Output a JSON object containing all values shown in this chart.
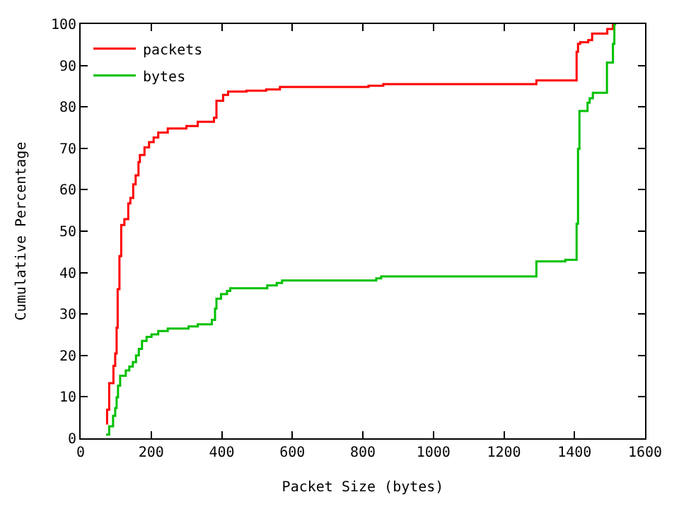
{
  "chart_data": {
    "type": "step",
    "xlabel": "Packet Size (bytes)",
    "ylabel": "Cumulative Percentage",
    "xlim": [
      0,
      1600
    ],
    "ylim": [
      0,
      100
    ],
    "xticks": [
      0,
      200,
      400,
      600,
      800,
      1000,
      1200,
      1400,
      1600
    ],
    "yticks": [
      0,
      10,
      20,
      30,
      40,
      50,
      60,
      70,
      80,
      90,
      100
    ],
    "legend": "top left",
    "marker": "none",
    "line_style": "solid",
    "series": [
      {
        "name": "packets",
        "color": "#ff0000",
        "x": [
          72,
          75,
          81,
          93,
          98,
          102,
          105,
          110,
          115,
          124,
          135,
          141,
          149,
          156,
          164,
          168,
          181,
          194,
          207,
          220,
          247,
          300,
          332,
          378,
          385,
          404,
          418,
          470,
          526,
          565,
          816,
          858,
          1292,
          1406,
          1410,
          1416,
          1439,
          1450,
          1493,
          1509,
          1512,
          1518
        ],
        "values": [
          3.6,
          6.9,
          13.3,
          17.5,
          20.5,
          26.7,
          36,
          44,
          51.5,
          52.9,
          56.7,
          58,
          61.3,
          63.5,
          66.7,
          68.4,
          70.2,
          71.5,
          72.6,
          73.8,
          74.8,
          75.4,
          76.4,
          77.4,
          81.5,
          82.9,
          83.7,
          83.9,
          84.2,
          84.8,
          85.1,
          85.5,
          86.4,
          93.3,
          95.2,
          95.6,
          96.1,
          97.7,
          98.8,
          100,
          100,
          100
        ]
      },
      {
        "name": "bytes",
        "color": "#00c000",
        "x": [
          72,
          81,
          92,
          98,
          102,
          106,
          112,
          128,
          138,
          148,
          157,
          165,
          174,
          187,
          201,
          220,
          247,
          306,
          332,
          372,
          381,
          385,
          398,
          415,
          424,
          529,
          556,
          571,
          838,
          852,
          1292,
          1374,
          1406,
          1410,
          1414,
          1437,
          1443,
          1452,
          1492,
          1509,
          1513,
          1518
        ],
        "values": [
          0.9,
          2.9,
          5.4,
          7.3,
          9.9,
          12.7,
          15.1,
          16.4,
          17.3,
          18.4,
          20,
          21.6,
          23.5,
          24.5,
          25.1,
          25.9,
          26.5,
          27,
          27.5,
          28.6,
          31.3,
          33.7,
          34.8,
          35.6,
          36.2,
          36.9,
          37.5,
          38.1,
          38.6,
          39.1,
          42.7,
          43.1,
          51.8,
          69.9,
          79,
          81,
          82.1,
          83.4,
          90.7,
          95.2,
          100,
          100
        ]
      }
    ]
  }
}
